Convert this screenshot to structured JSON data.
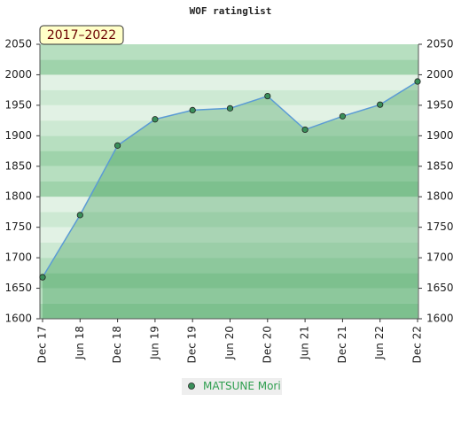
{
  "chart_data": {
    "type": "line",
    "title": "WOF ratinglist",
    "annotation": "2017–2022",
    "categories": [
      "Dec 17",
      "Jun 18",
      "Dec 18",
      "Jun 19",
      "Dec 19",
      "Jun 20",
      "Dec 20",
      "Jun 21",
      "Dec 21",
      "Jun 22",
      "Dec 22"
    ],
    "series": [
      {
        "name": "MATSUNE Mori",
        "color": "#5b9bd5",
        "marker_color": "#3a8f5a",
        "values": [
          1668,
          1770,
          1884,
          1927,
          1942,
          1945,
          1965,
          1910,
          1932,
          1951,
          1989
        ]
      }
    ],
    "ylim": [
      1600,
      2050
    ],
    "yticks": [
      1600,
      1650,
      1700,
      1750,
      1800,
      1850,
      1900,
      1950,
      2000,
      2050
    ]
  }
}
